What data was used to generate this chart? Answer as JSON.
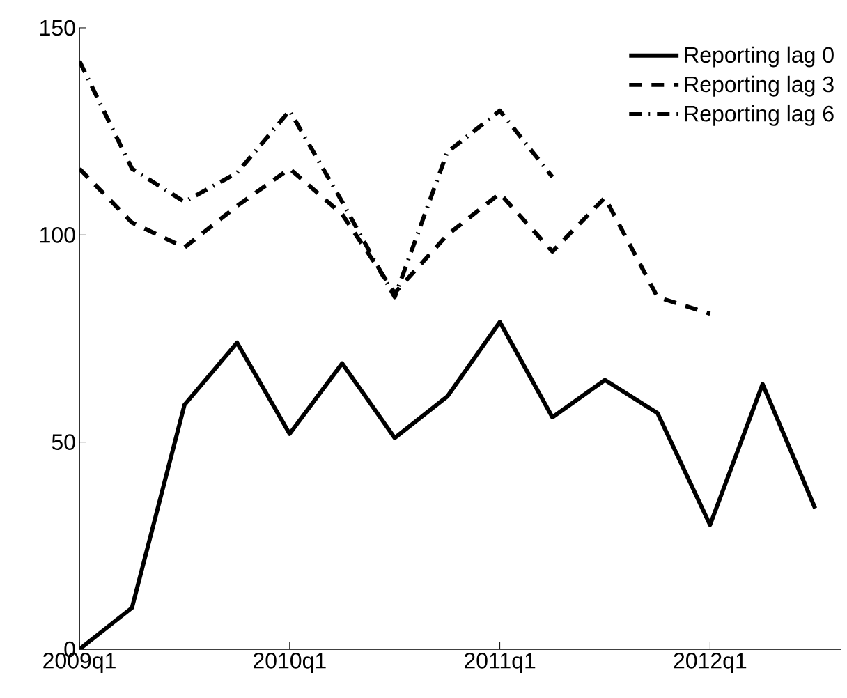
{
  "chart_data": {
    "type": "line",
    "ylim": [
      0,
      150
    ],
    "categories": [
      "2009q1",
      null,
      null,
      null,
      "2010q1",
      null,
      null,
      null,
      "2011q1",
      null,
      null,
      null,
      "2012q1",
      null,
      null
    ],
    "yticks": [
      0,
      50,
      100,
      150
    ],
    "grid": false,
    "legend": "top right",
    "marker": "none",
    "series": [
      {
        "name": "Reporting lag 0",
        "color": "#000000",
        "line_style": "solid",
        "values": [
          0,
          10,
          59,
          74,
          52,
          69,
          51,
          61,
          79,
          56,
          65,
          57,
          30,
          64,
          34
        ]
      },
      {
        "name": "Reporting lag 3",
        "color": "#000000",
        "line_style": "dashed",
        "values": [
          116,
          103,
          97,
          107,
          116,
          105,
          86,
          100,
          110,
          96,
          109,
          85,
          81,
          null,
          null
        ]
      },
      {
        "name": "Reporting lag 6",
        "color": "#000000",
        "line_style": "dashdot",
        "values": [
          142,
          116,
          108,
          115,
          130,
          108,
          85,
          120,
          130,
          114,
          null,
          null,
          null,
          null,
          null
        ]
      }
    ]
  }
}
